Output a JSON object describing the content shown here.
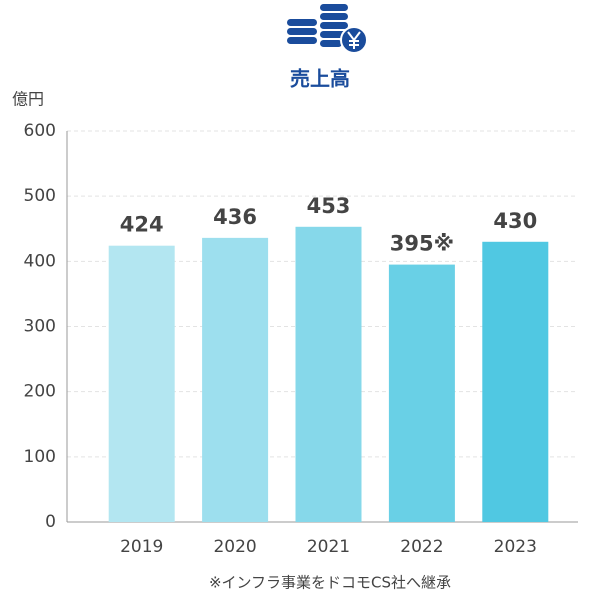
{
  "chart_data": {
    "type": "bar",
    "title": "売上高",
    "y_unit": "億円",
    "categories": [
      "2019",
      "2020",
      "2021",
      "2022",
      "2023"
    ],
    "values": [
      424,
      436,
      453,
      395,
      430
    ],
    "value_labels": [
      "424",
      "436",
      "453",
      "395※",
      "430"
    ],
    "colors": [
      "#b3e6f1",
      "#9ddfee",
      "#86d8ea",
      "#69d0e6",
      "#50c8e2"
    ],
    "ylim": [
      0,
      600
    ],
    "yticks": [
      0,
      100,
      200,
      300,
      400,
      500,
      600
    ],
    "grid": true,
    "footnote": "※インフラ事業をドコモCS社へ継承"
  }
}
